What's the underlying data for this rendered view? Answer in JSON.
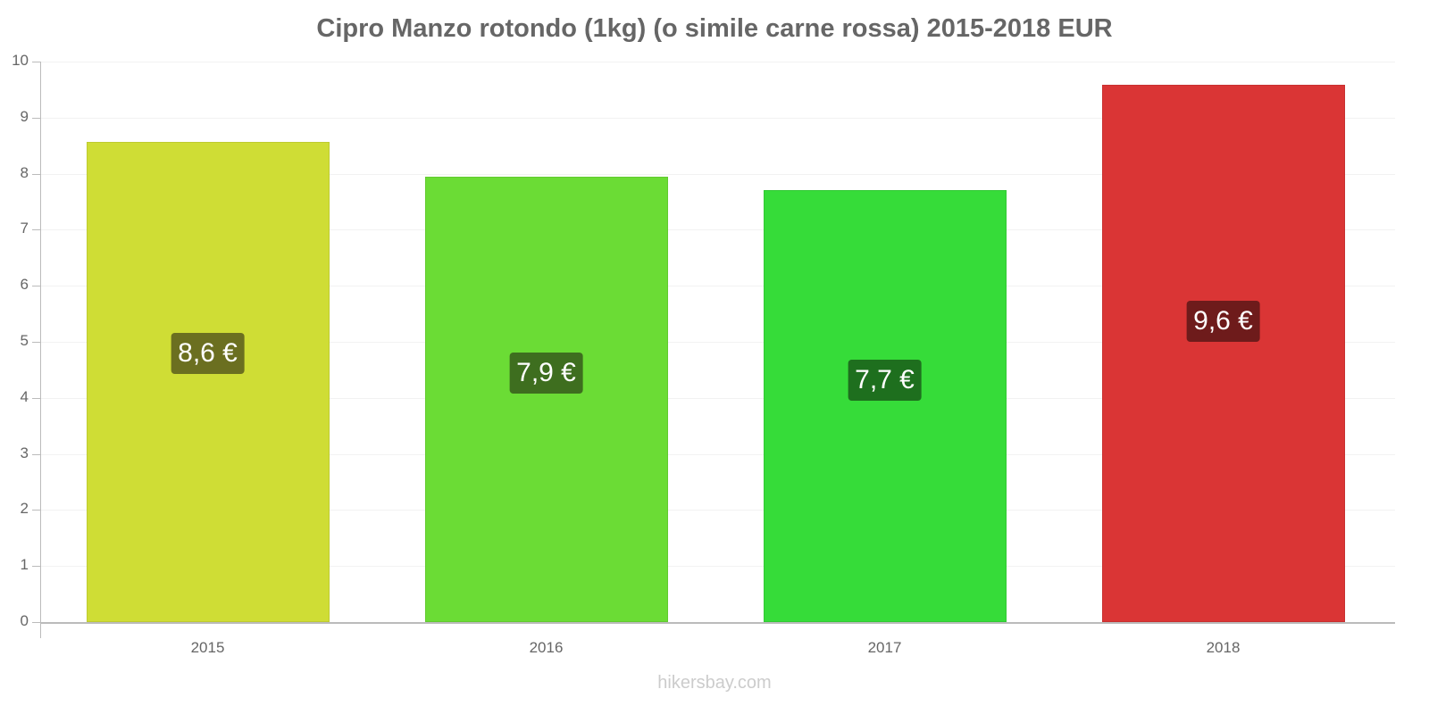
{
  "chart_data": {
    "type": "bar",
    "title": "Cipro Manzo rotondo (1kg) (o simile carne rossa) 2015-2018 EUR",
    "xlabel": "",
    "ylabel": "",
    "ylim": [
      0,
      10
    ],
    "yticks": [
      "0",
      "1",
      "2",
      "3",
      "4",
      "5",
      "6",
      "7",
      "8",
      "9",
      "10"
    ],
    "categories": [
      "2015",
      "2016",
      "2017",
      "2018"
    ],
    "values": [
      8.57,
      7.94,
      7.71,
      9.59
    ],
    "value_labels": [
      "8,6 €",
      "7,9 €",
      "7,7 €",
      "9,6 €"
    ],
    "bar_colors": [
      "#cfdd35",
      "#6bdc35",
      "#36dc39",
      "#da3535"
    ],
    "label_bg_colors": [
      "#6b6f20",
      "#3e6e1f",
      "#1e6f1e",
      "#6e1b1b"
    ],
    "grid": true,
    "legend": null
  },
  "watermark": "hikersbay.com"
}
